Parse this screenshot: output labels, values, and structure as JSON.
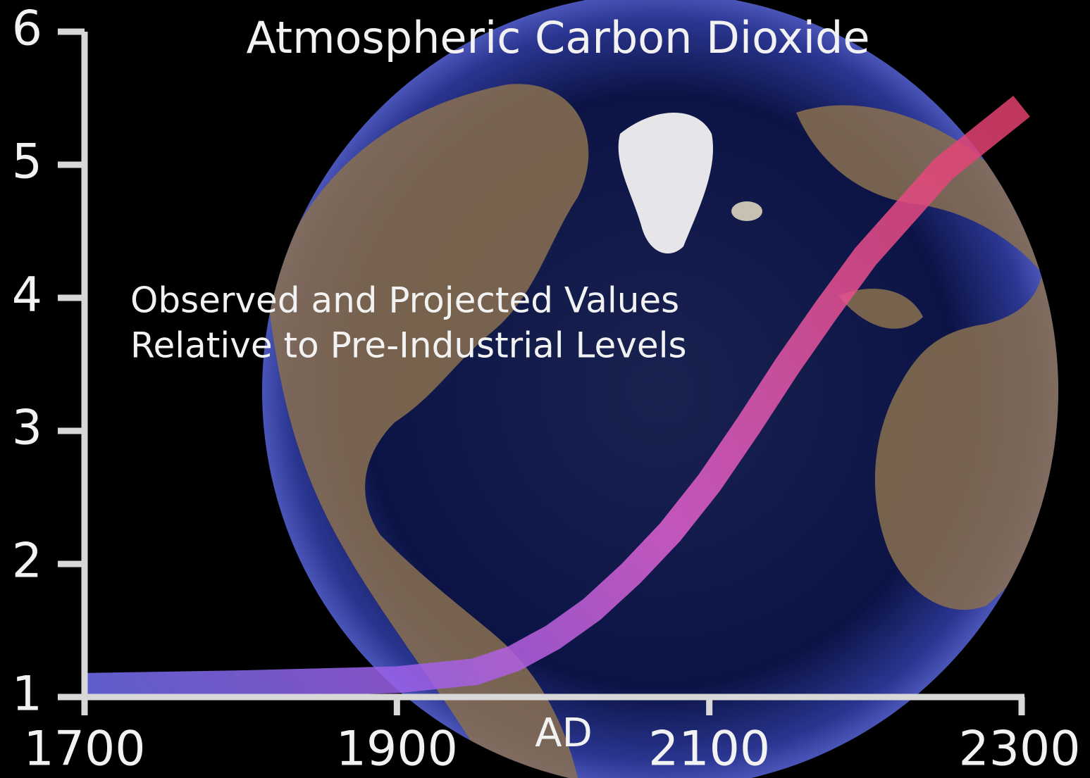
{
  "chart_data": {
    "type": "line",
    "title": "Atmospheric Carbon Dioxide",
    "annotations": [
      "Observed and Projected Values",
      "Relative to Pre-Industrial Levels"
    ],
    "x_label": "AD",
    "x": [
      1700,
      1800,
      1900,
      1950,
      1975,
      2000,
      2025,
      2050,
      2075,
      2100,
      2125,
      2150,
      2175,
      2200,
      2250,
      2300
    ],
    "values": [
      1.08,
      1.1,
      1.13,
      1.19,
      1.29,
      1.45,
      1.66,
      1.93,
      2.24,
      2.61,
      3.04,
      3.49,
      3.91,
      4.31,
      4.97,
      5.44
    ],
    "colors": [
      "#6e6ef0",
      "#a060e8",
      "#e060d0",
      "#e85090",
      "#e03c64"
    ],
    "xlim": [
      1700,
      2300
    ],
    "xticks": [
      1700,
      1900,
      2100,
      2300
    ],
    "ylim": [
      1,
      6
    ],
    "yticks": [
      1,
      2,
      3,
      4,
      5,
      6
    ]
  }
}
